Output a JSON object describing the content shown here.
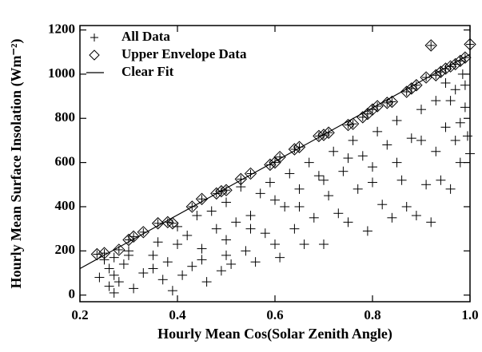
{
  "chart_data": {
    "type": "scatter",
    "x_label": "Hourly Mean Cos(Solar Zenith Angle)",
    "y_label": "Hourly Mean Surface Insolation (Wm⁻²)",
    "xlim": [
      0.2,
      1.0
    ],
    "ylim": [
      -30,
      1220
    ],
    "xticks": [
      0.2,
      0.4,
      0.6,
      0.8,
      {
        "value": 1.0,
        "label": "1.0"
      }
    ],
    "yticks": [
      0,
      200,
      400,
      600,
      800,
      1000,
      1200
    ],
    "legend": "upper left",
    "series": [
      {
        "name": "All Data",
        "marker": "plus",
        "color": "#000000",
        "x": [
          0.24,
          0.25,
          0.26,
          0.26,
          0.27,
          0.27,
          0.28,
          0.29,
          0.3,
          0.31,
          0.33,
          0.35,
          0.36,
          0.37,
          0.38,
          0.39,
          0.4,
          0.41,
          0.42,
          0.43,
          0.44,
          0.45,
          0.46,
          0.47,
          0.48,
          0.49,
          0.5,
          0.5,
          0.51,
          0.52,
          0.53,
          0.54,
          0.55,
          0.56,
          0.57,
          0.58,
          0.59,
          0.6,
          0.61,
          0.62,
          0.63,
          0.64,
          0.65,
          0.66,
          0.67,
          0.68,
          0.69,
          0.7,
          0.71,
          0.72,
          0.73,
          0.74,
          0.75,
          0.76,
          0.77,
          0.78,
          0.79,
          0.8,
          0.81,
          0.82,
          0.83,
          0.84,
          0.85,
          0.86,
          0.87,
          0.88,
          0.89,
          0.9,
          0.91,
          0.92,
          0.93,
          0.94,
          0.95,
          0.96,
          0.97,
          0.98,
          0.99,
          1.0,
          0.99,
          0.98,
          0.97,
          0.96,
          0.95,
          0.93,
          0.9,
          0.85,
          0.8,
          0.75,
          0.7,
          0.65,
          0.6,
          0.55,
          0.5,
          0.45,
          0.4,
          0.35,
          0.3,
          0.27,
          0.985,
          0.995
        ],
        "values": [
          80,
          160,
          40,
          120,
          10,
          170,
          60,
          140,
          200,
          30,
          100,
          180,
          240,
          70,
          150,
          20,
          310,
          90,
          270,
          130,
          360,
          210,
          60,
          380,
          300,
          110,
          250,
          420,
          140,
          330,
          490,
          200,
          360,
          150,
          460,
          280,
          510,
          230,
          170,
          400,
          550,
          300,
          480,
          230,
          600,
          350,
          540,
          230,
          450,
          650,
          370,
          560,
          330,
          700,
          480,
          630,
          290,
          580,
          740,
          410,
          680,
          350,
          790,
          520,
          400,
          710,
          360,
          840,
          500,
          330,
          880,
          520,
          760,
          480,
          930,
          600,
          850,
          640,
          950,
          780,
          700,
          880,
          960,
          650,
          700,
          600,
          510,
          620,
          520,
          400,
          430,
          300,
          180,
          160,
          230,
          120,
          180,
          90,
          1000,
          720
        ]
      },
      {
        "name": "Upper Envelope Data",
        "marker": "diamond",
        "color": "#000000",
        "x": [
          0.235,
          0.25,
          0.28,
          0.3,
          0.31,
          0.33,
          0.36,
          0.38,
          0.39,
          0.43,
          0.45,
          0.48,
          0.49,
          0.5,
          0.53,
          0.55,
          0.59,
          0.6,
          0.61,
          0.64,
          0.65,
          0.69,
          0.7,
          0.71,
          0.75,
          0.76,
          0.78,
          0.79,
          0.8,
          0.81,
          0.83,
          0.84,
          0.87,
          0.88,
          0.89,
          0.91,
          0.92,
          0.93,
          0.94,
          0.95,
          0.96,
          0.97,
          0.98,
          0.99,
          1.0
        ],
        "values": [
          185,
          190,
          205,
          250,
          265,
          285,
          325,
          330,
          325,
          400,
          435,
          460,
          470,
          475,
          525,
          550,
          590,
          600,
          625,
          660,
          670,
          720,
          725,
          735,
          770,
          775,
          805,
          820,
          840,
          855,
          870,
          875,
          920,
          935,
          950,
          985,
          1130,
          995,
          1010,
          1025,
          1035,
          1045,
          1060,
          1075,
          1135
        ]
      },
      {
        "name": "Clear Fit",
        "marker": "line",
        "color": "#000000",
        "x": [
          0.2,
          1.0
        ],
        "values": [
          120,
          1090
        ]
      }
    ]
  }
}
